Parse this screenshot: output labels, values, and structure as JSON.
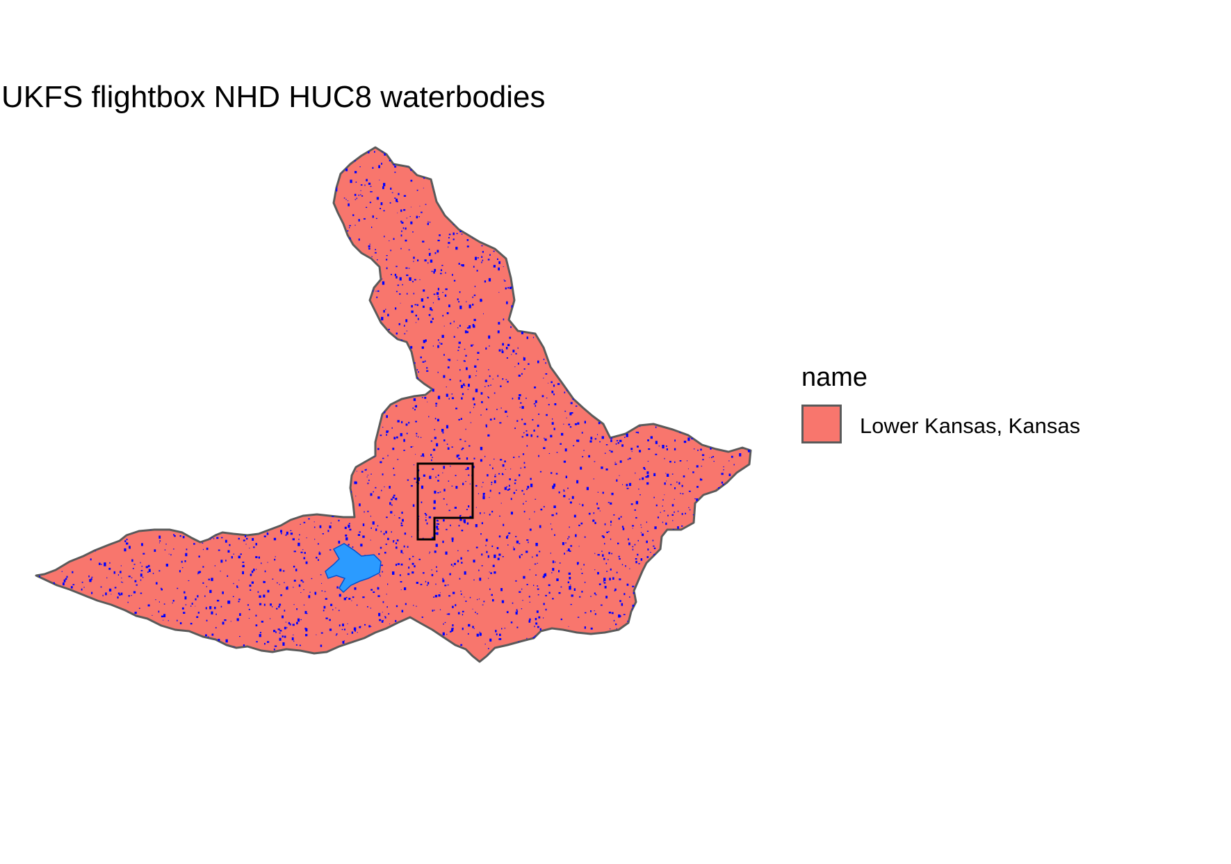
{
  "title": "UKFS flightbox NHD HUC8 waterbodies",
  "legend": {
    "title": "name",
    "items": [
      {
        "label": "Lower Kansas, Kansas",
        "fill": "#F8766D",
        "border": "#5a5a5a"
      }
    ]
  },
  "colors": {
    "watershed_fill": "#F8766D",
    "watershed_border": "#5a5a5a",
    "small_waterbodies": "#0000ff",
    "reservoir": "#2b9bff",
    "flightbox_outline": "#000000"
  },
  "layers": [
    "watershed",
    "waterbodies",
    "flightbox"
  ]
}
